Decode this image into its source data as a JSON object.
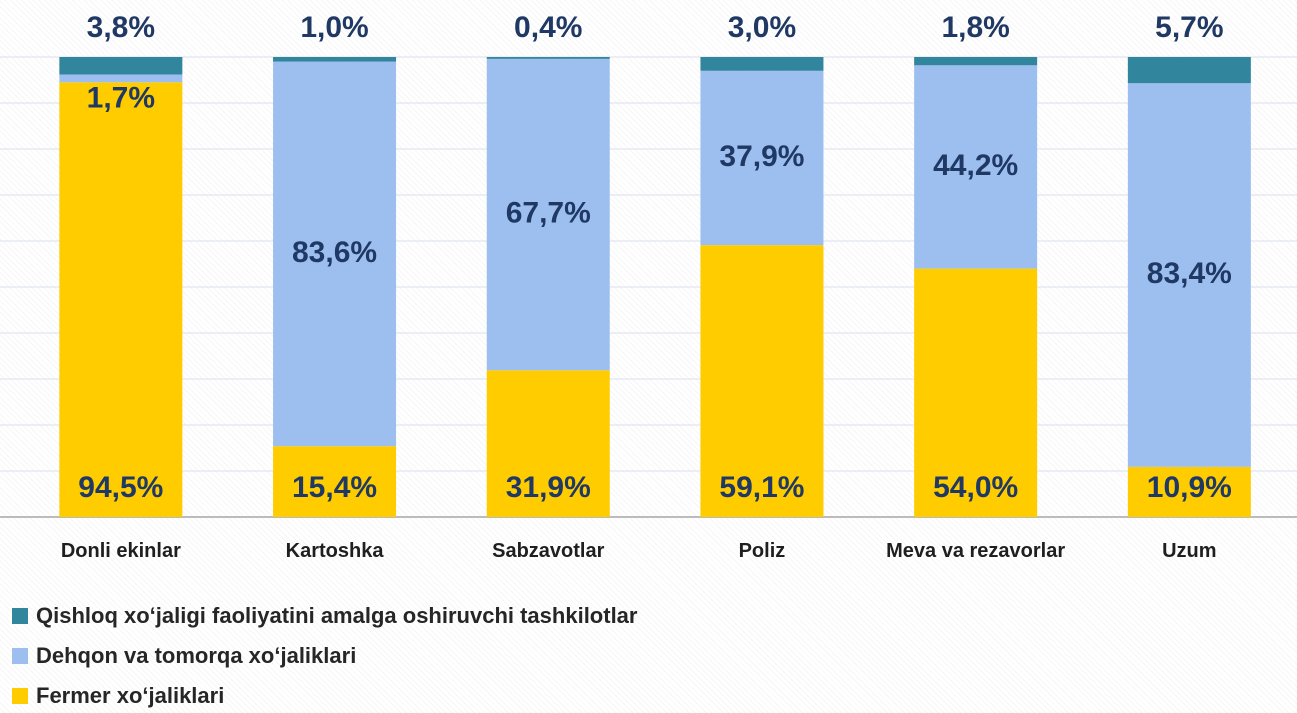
{
  "chart_data": {
    "type": "stacked_bar",
    "categories": [
      "Donli ekinlar",
      "Kartoshka",
      "Sabzavotlar",
      "Poliz",
      "Meva va rezavorlar",
      "Uzum"
    ],
    "series": [
      {
        "name": "Qishloq xo‘jaligi faoliyatini amalga oshiruvchi tashkilotlar",
        "color": "#31859c",
        "values": [
          3.8,
          1.0,
          0.4,
          3.0,
          1.8,
          5.7
        ],
        "value_labels": [
          "3,8%",
          "1,0%",
          "0,4%",
          "3,0%",
          "1,8%",
          "5,7%"
        ]
      },
      {
        "name": "Dehqon va tomorqa xo‘jaliklari",
        "color": "#9dbff0",
        "values": [
          1.7,
          83.6,
          67.7,
          37.9,
          44.2,
          83.4
        ],
        "value_labels": [
          "1,7%",
          "83,6%",
          "67,7%",
          "37,9%",
          "44,2%",
          "83,4%"
        ]
      },
      {
        "name": "Fermer xo‘jaliklari",
        "color": "#ffcc00",
        "values": [
          94.5,
          15.4,
          31.9,
          59.1,
          54.0,
          10.9
        ],
        "value_labels": [
          "94,5%",
          "15,4%",
          "31,9%",
          "59,1%",
          "54,0%",
          "10,9%"
        ]
      }
    ],
    "ylim": [
      0,
      100
    ],
    "yticks": [
      0,
      10,
      20,
      30,
      40,
      50,
      60,
      70,
      80,
      90,
      100
    ],
    "grid": true
  }
}
